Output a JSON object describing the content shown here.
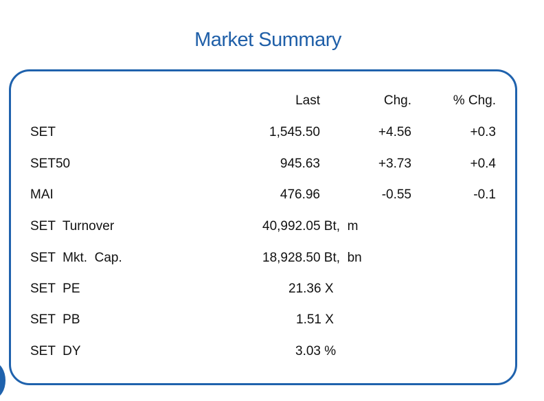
{
  "title": "Market Summary",
  "headers": {
    "last": "Last",
    "chg": "Chg.",
    "pct_chg": "% Chg."
  },
  "indices": [
    {
      "name": "SET",
      "last": "1,545.50",
      "chg": "+4.56",
      "pct_chg": "+0.3"
    },
    {
      "name": "SET50",
      "last": "945.63",
      "chg": "+3.73",
      "pct_chg": "+0.4"
    },
    {
      "name": "MAI",
      "last": "476.96",
      "chg": "-0.55",
      "pct_chg": "-0.1"
    }
  ],
  "stats": [
    {
      "name": "SET  Turnover",
      "value": "40,992.05 Bt,  m"
    },
    {
      "name": "SET  Mkt.  Cap.",
      "value": "18,928.50 Bt,  bn"
    },
    {
      "name": "SET  PE",
      "value": "21.36 X"
    },
    {
      "name": "SET  PB",
      "value": "1.51 X"
    },
    {
      "name": "SET  DY",
      "value": "3.03 %"
    }
  ],
  "colors": {
    "accent": "#1f62ad",
    "title": "#1f5fa8"
  }
}
